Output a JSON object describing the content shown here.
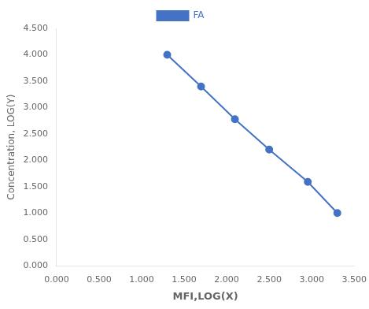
{
  "chart_data": {
    "type": "line",
    "xlabel": "MFI,LOG(X)",
    "ylabel": "Concentration, LOG(Y)",
    "x": [
      1.301,
      1.699,
      2.097,
      2.5,
      2.954,
      3.301
    ],
    "series": [
      {
        "name": "FA",
        "color": "#4472C4",
        "marker": "circle",
        "line_style": "solid",
        "values": [
          4.0,
          3.398,
          2.778,
          2.204,
          1.591,
          1.0
        ]
      }
    ],
    "xlim": [
      0.0,
      3.5
    ],
    "ylim": [
      0.0,
      4.5
    ],
    "xticks": [
      {
        "value": 0.0,
        "label": "0.000"
      },
      {
        "value": 0.5,
        "label": "0.500"
      },
      {
        "value": 1.0,
        "label": "1.000"
      },
      {
        "value": 1.5,
        "label": "1.500"
      },
      {
        "value": 2.0,
        "label": "2.000"
      },
      {
        "value": 2.5,
        "label": "2.500"
      },
      {
        "value": 3.0,
        "label": "3.000"
      },
      {
        "value": 3.5,
        "label": "3.500"
      }
    ],
    "yticks": [
      {
        "value": 0.0,
        "label": "0.000"
      },
      {
        "value": 0.5,
        "label": "0.500"
      },
      {
        "value": 1.0,
        "label": "1.000"
      },
      {
        "value": 1.5,
        "label": "1.500"
      },
      {
        "value": 2.0,
        "label": "2.000"
      },
      {
        "value": 2.5,
        "label": "2.500"
      },
      {
        "value": 3.0,
        "label": "3.000"
      },
      {
        "value": 3.5,
        "label": "3.500"
      },
      {
        "value": 4.0,
        "label": "4.000"
      },
      {
        "value": 4.5,
        "label": "4.500"
      }
    ],
    "grid": false,
    "legend": "top"
  }
}
